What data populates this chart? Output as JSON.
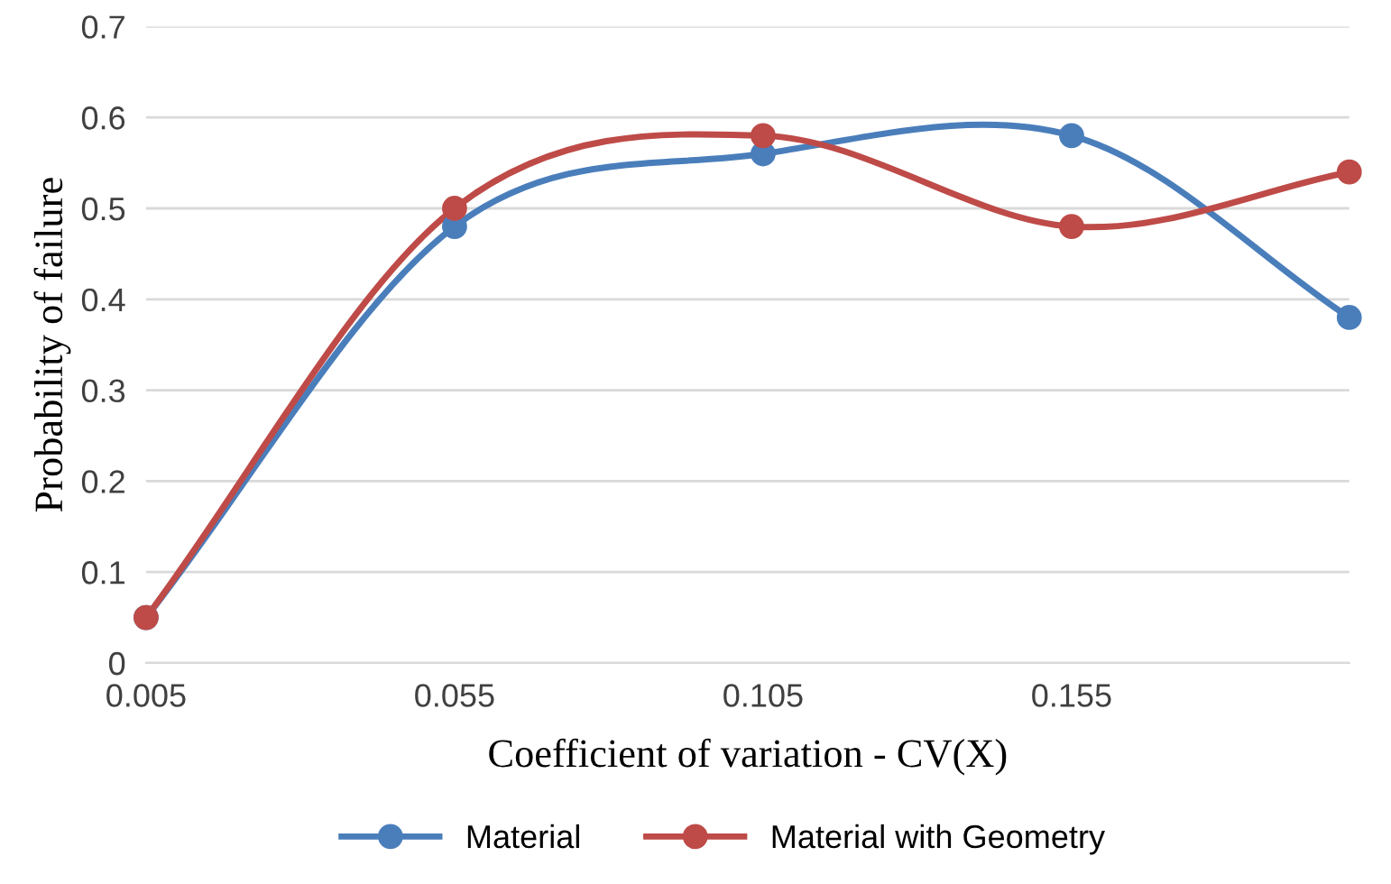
{
  "chart_data": {
    "type": "line",
    "xlabel": "Coefficient of variation - CV(X)",
    "ylabel": "Probability of failure",
    "x": [
      0.005,
      0.055,
      0.105,
      0.155,
      0.2
    ],
    "series": [
      {
        "name": "Material",
        "color": "#4a7ebb",
        "values": [
          0.05,
          0.48,
          0.56,
          0.58,
          0.38
        ]
      },
      {
        "name": "Material with Geometry",
        "color": "#be4b48",
        "values": [
          0.05,
          0.5,
          0.58,
          0.48,
          0.54
        ]
      }
    ],
    "xlim": [
      0.005,
      0.2
    ],
    "xticks": [
      0.005,
      0.055,
      0.105,
      0.155
    ],
    "ylim": [
      0,
      0.7
    ],
    "yticks": [
      0,
      0.1,
      0.2,
      0.3,
      0.4,
      0.5,
      0.6,
      0.7
    ],
    "grid": "y",
    "legend": "bottom",
    "marker": "circle",
    "line_style": "solid"
  }
}
